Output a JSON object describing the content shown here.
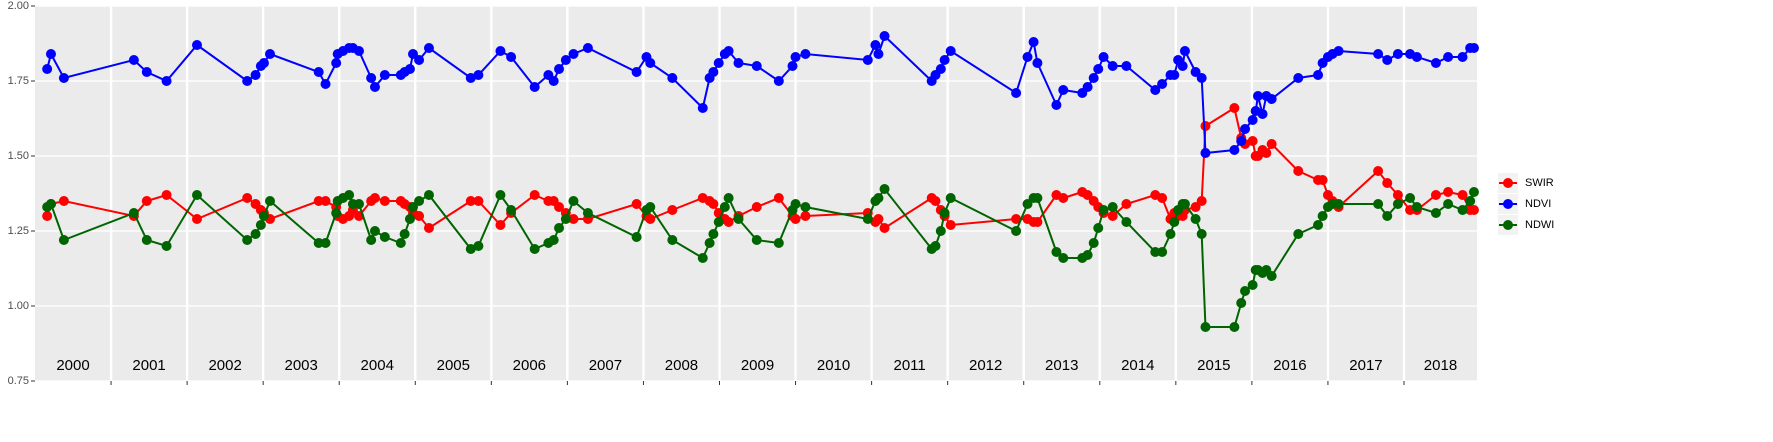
{
  "chart_data": {
    "type": "line",
    "x": [
      2000.16,
      2000.21,
      2000.38,
      2001.3,
      2001.47,
      2001.73,
      2002.13,
      2002.79,
      2002.9,
      2002.97,
      2003.01,
      2003.09,
      2003.73,
      2003.82,
      2003.96,
      2003.98,
      2004.05,
      2004.13,
      2004.18,
      2004.26,
      2004.42,
      2004.47,
      2004.6,
      2004.81,
      2004.86,
      2004.93,
      2004.97,
      2005.05,
      2005.18,
      2005.73,
      2005.83,
      2006.12,
      2006.26,
      2006.57,
      2006.75,
      2006.82,
      2006.89,
      2006.98,
      2007.08,
      2007.27,
      2007.91,
      2008.04,
      2008.09,
      2008.38,
      2008.78,
      2008.87,
      2008.92,
      2008.99,
      2009.07,
      2009.12,
      2009.25,
      2009.49,
      2009.78,
      2009.96,
      2010.0,
      2010.13,
      2010.95,
      2011.05,
      2011.09,
      2011.17,
      2011.79,
      2011.84,
      2011.91,
      2011.96,
      2012.04,
      2012.9,
      2013.05,
      2013.13,
      2013.18,
      2013.43,
      2013.52,
      2013.77,
      2013.84,
      2013.92,
      2013.98,
      2014.05,
      2014.17,
      2014.35,
      2014.73,
      2014.82,
      2014.93,
      2014.98,
      2015.03,
      2015.09,
      2015.12,
      2015.26,
      2015.34,
      2015.39,
      2015.77,
      2015.86,
      2015.91,
      2016.01,
      2016.05,
      2016.08,
      2016.14,
      2016.19,
      2016.26,
      2016.61,
      2016.87,
      2016.93,
      2017.0,
      2017.06,
      2017.14,
      2017.66,
      2017.78,
      2017.92,
      2018.08,
      2018.17,
      2018.42,
      2018.58,
      2018.77,
      2018.87,
      2018.92
    ],
    "series": [
      {
        "name": "SWIR",
        "color": "#ff0000",
        "values": [
          1.3,
          1.34,
          1.35,
          1.3,
          1.35,
          1.37,
          1.29,
          1.36,
          1.34,
          1.32,
          1.31,
          1.29,
          1.35,
          1.35,
          1.33,
          1.3,
          1.29,
          1.3,
          1.32,
          1.3,
          1.35,
          1.36,
          1.35,
          1.35,
          1.34,
          1.33,
          1.31,
          1.3,
          1.26,
          1.35,
          1.35,
          1.27,
          1.31,
          1.37,
          1.35,
          1.35,
          1.33,
          1.31,
          1.29,
          1.29,
          1.34,
          1.3,
          1.29,
          1.32,
          1.36,
          1.35,
          1.34,
          1.31,
          1.29,
          1.28,
          1.3,
          1.33,
          1.36,
          1.3,
          1.29,
          1.3,
          1.31,
          1.28,
          1.29,
          1.26,
          1.36,
          1.35,
          1.32,
          1.3,
          1.27,
          1.29,
          1.29,
          1.28,
          1.28,
          1.37,
          1.36,
          1.38,
          1.37,
          1.35,
          1.33,
          1.31,
          1.3,
          1.34,
          1.37,
          1.36,
          1.29,
          1.31,
          1.3,
          1.3,
          1.32,
          1.33,
          1.35,
          1.6,
          1.66,
          1.56,
          1.54,
          1.55,
          1.5,
          1.5,
          1.52,
          1.51,
          1.54,
          1.45,
          1.42,
          1.42,
          1.37,
          1.35,
          1.33,
          1.45,
          1.41,
          1.37,
          1.32,
          1.32,
          1.37,
          1.38,
          1.37,
          1.32,
          1.32
        ]
      },
      {
        "name": "NDVI",
        "color": "#0000ff",
        "values": [
          1.79,
          1.84,
          1.76,
          1.82,
          1.78,
          1.75,
          1.87,
          1.75,
          1.77,
          1.8,
          1.81,
          1.84,
          1.78,
          1.74,
          1.81,
          1.84,
          1.85,
          1.86,
          1.86,
          1.85,
          1.76,
          1.73,
          1.77,
          1.77,
          1.78,
          1.79,
          1.84,
          1.82,
          1.86,
          1.76,
          1.77,
          1.85,
          1.83,
          1.73,
          1.77,
          1.75,
          1.79,
          1.82,
          1.84,
          1.86,
          1.78,
          1.83,
          1.81,
          1.76,
          1.66,
          1.76,
          1.78,
          1.81,
          1.84,
          1.85,
          1.81,
          1.8,
          1.75,
          1.8,
          1.83,
          1.84,
          1.82,
          1.87,
          1.84,
          1.9,
          1.75,
          1.77,
          1.79,
          1.82,
          1.85,
          1.71,
          1.83,
          1.88,
          1.81,
          1.67,
          1.72,
          1.71,
          1.73,
          1.76,
          1.79,
          1.83,
          1.8,
          1.8,
          1.72,
          1.74,
          1.77,
          1.77,
          1.82,
          1.8,
          1.85,
          1.78,
          1.76,
          1.51,
          1.52,
          1.55,
          1.59,
          1.62,
          1.65,
          1.7,
          1.64,
          1.7,
          1.69,
          1.76,
          1.77,
          1.81,
          1.83,
          1.84,
          1.85,
          1.84,
          1.82,
          1.84,
          1.84,
          1.83,
          1.81,
          1.83,
          1.83,
          1.86,
          1.86
        ]
      },
      {
        "name": "NDWI",
        "color": "#006400",
        "values": [
          1.33,
          1.34,
          1.22,
          1.31,
          1.22,
          1.2,
          1.37,
          1.22,
          1.24,
          1.27,
          1.3,
          1.35,
          1.21,
          1.21,
          1.31,
          1.35,
          1.36,
          1.37,
          1.34,
          1.34,
          1.22,
          1.25,
          1.23,
          1.21,
          1.24,
          1.29,
          1.33,
          1.35,
          1.37,
          1.19,
          1.2,
          1.37,
          1.32,
          1.19,
          1.21,
          1.22,
          1.26,
          1.29,
          1.35,
          1.31,
          1.23,
          1.32,
          1.33,
          1.22,
          1.16,
          1.21,
          1.24,
          1.28,
          1.33,
          1.36,
          1.29,
          1.22,
          1.21,
          1.32,
          1.34,
          1.33,
          1.29,
          1.35,
          1.36,
          1.39,
          1.19,
          1.2,
          1.25,
          1.31,
          1.36,
          1.25,
          1.34,
          1.36,
          1.36,
          1.18,
          1.16,
          1.16,
          1.17,
          1.21,
          1.26,
          1.32,
          1.33,
          1.28,
          1.18,
          1.18,
          1.24,
          1.28,
          1.32,
          1.34,
          1.34,
          1.29,
          1.24,
          0.93,
          0.93,
          1.01,
          1.05,
          1.07,
          1.12,
          1.12,
          1.11,
          1.12,
          1.1,
          1.24,
          1.27,
          1.3,
          1.33,
          1.34,
          1.34,
          1.34,
          1.3,
          1.34,
          1.36,
          1.33,
          1.31,
          1.34,
          1.32,
          1.35,
          1.38
        ]
      }
    ],
    "xlim": [
      2000,
      2018.96
    ],
    "xticks": [
      2001,
      2002,
      2003,
      2004,
      2005,
      2006,
      2007,
      2008,
      2009,
      2010,
      2011,
      2012,
      2013,
      2014,
      2015,
      2016,
      2017,
      2018
    ],
    "year_labels": [
      "2000",
      "2001",
      "2002",
      "2003",
      "2004",
      "2005",
      "2006",
      "2007",
      "2008",
      "2009",
      "2010",
      "2011",
      "2012",
      "2013",
      "2014",
      "2015",
      "2016",
      "2017",
      "2018"
    ],
    "ylim": [
      0.75,
      2.0
    ],
    "yticks": [
      {
        "value": 0.75,
        "label": "0.75"
      },
      {
        "value": 1.0,
        "label": "1.00"
      },
      {
        "value": 1.25,
        "label": "1.25"
      },
      {
        "value": 1.5,
        "label": "1.50"
      },
      {
        "value": 1.75,
        "label": "1.75"
      },
      {
        "value": 2.0,
        "label": "2.00"
      }
    ],
    "grid": true,
    "legend_position": "right"
  }
}
